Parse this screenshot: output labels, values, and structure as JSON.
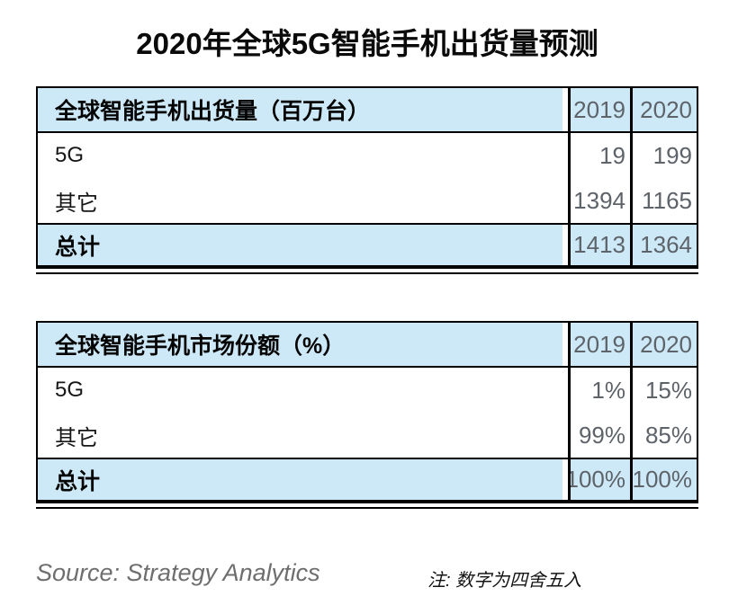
{
  "title": "2020年全球5G智能手机出货量预测",
  "colors": {
    "header_row_bg": "#CDE9F7",
    "total_row_bg": "#CDE9F7",
    "number_text": "#5D6369",
    "border": "#000000"
  },
  "tables": [
    {
      "header": "全球智能手机出货量（百万台）",
      "columns": [
        "2019",
        "2020"
      ],
      "rows": [
        {
          "label": "5G",
          "values": [
            "19",
            "199"
          ]
        },
        {
          "label": "其它",
          "values": [
            "1394",
            "1165"
          ]
        }
      ],
      "total": {
        "label": "总计",
        "values": [
          "1413",
          "1364"
        ]
      }
    },
    {
      "header": "全球智能手机市场份额（%）",
      "columns": [
        "2019",
        "2020"
      ],
      "rows": [
        {
          "label": "5G",
          "values": [
            "1%",
            "15%"
          ]
        },
        {
          "label": "其它",
          "values": [
            "99%",
            "85%"
          ]
        }
      ],
      "total": {
        "label": "总计",
        "values": [
          "100%",
          "100%"
        ]
      }
    }
  ],
  "footer": {
    "source": "Source: Strategy Analytics",
    "note": "注: 数字为四舍五入"
  },
  "chart_data": [
    {
      "type": "table",
      "title": "全球智能手机出货量（百万台）",
      "columns": [
        "",
        "2019",
        "2020"
      ],
      "rows": [
        [
          "5G",
          19,
          199
        ],
        [
          "其它",
          1394,
          1165
        ],
        [
          "总计",
          1413,
          1364
        ]
      ]
    },
    {
      "type": "table",
      "title": "全球智能手机市场份额（%）",
      "columns": [
        "",
        "2019",
        "2020"
      ],
      "rows": [
        [
          "5G",
          "1%",
          "15%"
        ],
        [
          "其它",
          "99%",
          "85%"
        ],
        [
          "总计",
          "100%",
          "100%"
        ]
      ]
    }
  ]
}
